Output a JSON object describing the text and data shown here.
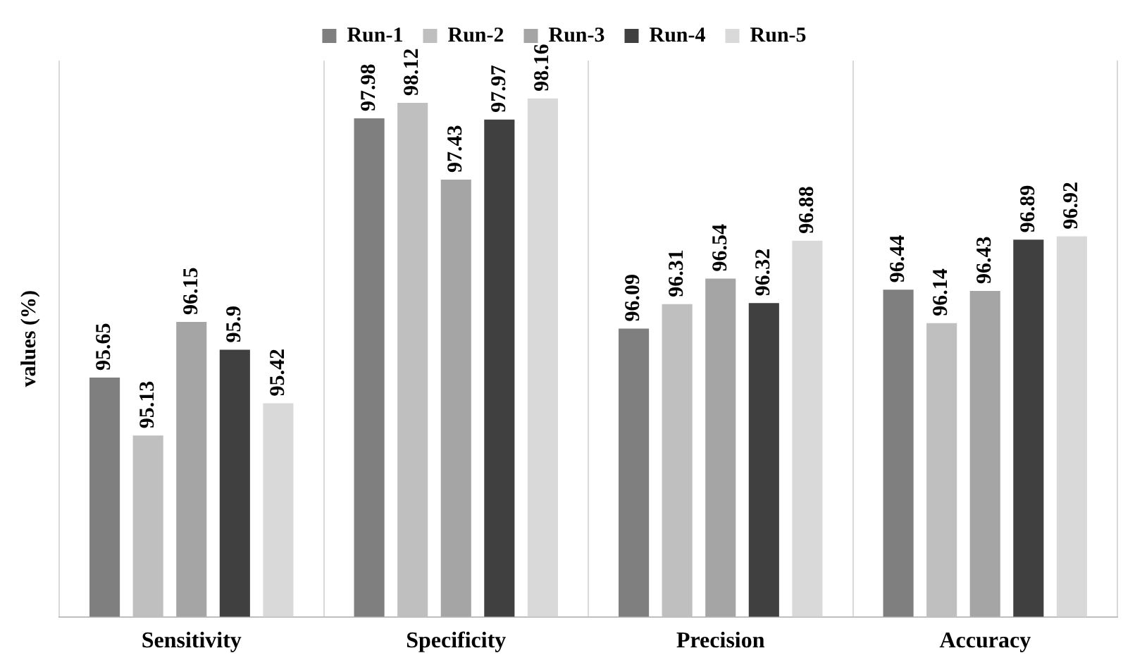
{
  "chart_data": {
    "type": "bar",
    "ylabel": "values (%)",
    "categories": [
      "Sensitivity",
      "Specificity",
      "Precision",
      "Accuracy"
    ],
    "series": [
      {
        "name": "Run-1",
        "color": "#7f7f7f",
        "values": [
          95.65,
          97.98,
          96.09,
          96.44
        ]
      },
      {
        "name": "Run-2",
        "color": "#bfbfbf",
        "values": [
          95.13,
          98.12,
          96.31,
          96.14
        ]
      },
      {
        "name": "Run-3",
        "color": "#a5a5a5",
        "values": [
          96.15,
          97.43,
          96.54,
          96.43
        ]
      },
      {
        "name": "Run-4",
        "color": "#404040",
        "values": [
          95.9,
          97.97,
          96.32,
          96.89
        ]
      },
      {
        "name": "Run-5",
        "color": "#d9d9d9",
        "values": [
          95.42,
          98.16,
          96.88,
          96.92
        ]
      }
    ],
    "ylim": [
      93.5,
      98.5
    ],
    "tick_labels": "x",
    "grid": "x",
    "legend": "top",
    "data_labels": true
  }
}
